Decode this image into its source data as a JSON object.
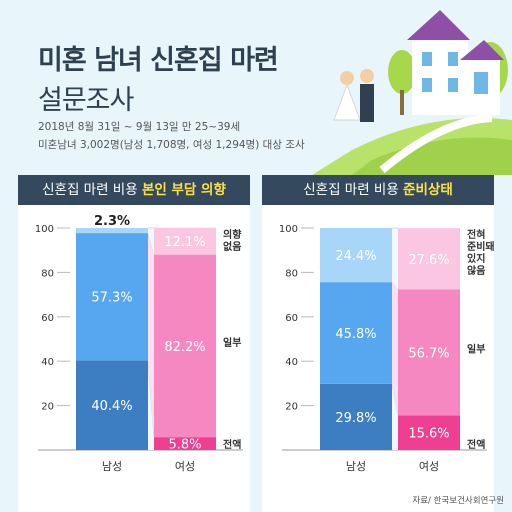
{
  "title": {
    "line1": "미혼 남녀 신혼집 마련",
    "line2": "설문조사"
  },
  "subtitle": {
    "line1": "2018년 8월 31일 ~ 9월 13일 만 25~39세",
    "line2": "미혼남녀 3,002명(남성 1,708명, 여성 1,294명) 대상 조사"
  },
  "source": "자료/ 한국보건사회연구원",
  "colors": {
    "header_bg": "#34495e",
    "highlight": "#ffe23f",
    "male_dark": "#3d7ec3",
    "male_mid": "#57a6f0",
    "male_light": "#a7d6f8",
    "female_dark": "#ee3f93",
    "female_mid": "#f588c0",
    "female_light": "#fbc6e2",
    "connector": "#fde0ee"
  },
  "chart_data": [
    {
      "type": "bar",
      "stacked": true,
      "title_plain": "신혼집 마련 비용 ",
      "title_highlight": "본인 부담 의향",
      "categories": [
        "남성",
        "여성"
      ],
      "ylim": [
        0,
        100
      ],
      "yticks": [
        20,
        40,
        60,
        80,
        100
      ],
      "series": [
        {
          "name": "전액",
          "values": [
            40.4,
            5.8
          ],
          "labels": [
            "40.4%",
            "5.8%"
          ]
        },
        {
          "name": "일부",
          "values": [
            57.3,
            82.2
          ],
          "labels": [
            "57.3%",
            "82.2%"
          ]
        },
        {
          "name": "의향 없음",
          "values": [
            2.3,
            12.1
          ],
          "labels": [
            "2.3%",
            "12.1%"
          ]
        }
      ],
      "side_labels": [
        [
          "전액"
        ],
        [
          "일부"
        ],
        [
          "의향",
          "없음"
        ]
      ]
    },
    {
      "type": "bar",
      "stacked": true,
      "title_plain": "신혼집 마련 비용 ",
      "title_highlight": "준비상태",
      "categories": [
        "남성",
        "여성"
      ],
      "ylim": [
        0,
        100
      ],
      "yticks": [
        20,
        40,
        60,
        80,
        100
      ],
      "series": [
        {
          "name": "전액",
          "values": [
            29.8,
            15.6
          ],
          "labels": [
            "29.8%",
            "15.6%"
          ]
        },
        {
          "name": "일부",
          "values": [
            45.8,
            56.7
          ],
          "labels": [
            "45.8%",
            "56.7%"
          ]
        },
        {
          "name": "전혀 준비돼 있지 않음",
          "values": [
            24.4,
            27.6
          ],
          "labels": [
            "24.4%",
            "27.6%"
          ]
        }
      ],
      "side_labels": [
        [
          "전액"
        ],
        [
          "일부"
        ],
        [
          "전혀",
          "준비돼",
          "있지",
          "않음"
        ]
      ]
    }
  ]
}
